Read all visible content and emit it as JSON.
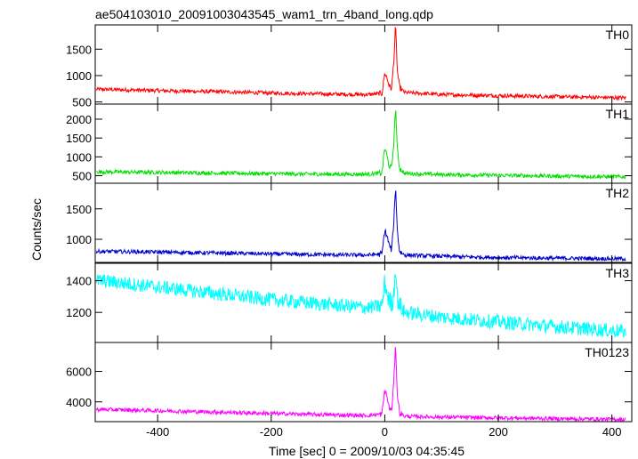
{
  "chart_data": {
    "type": "line",
    "title": "ae504103010_20091003043545_wam1_trn_4band_long.qdp",
    "xlabel": "Time [sec] 0 = 2009/10/03 04:35:45",
    "ylabel": "Counts/sec",
    "xlim": [
      -510,
      435
    ],
    "x_ticks": [
      -400,
      -200,
      0,
      200,
      400
    ],
    "grid": false,
    "panels": [
      {
        "name": "TH0",
        "color": "#ff0000",
        "ylim": [
          460,
          1960
        ],
        "y_ticks": [
          500,
          1000,
          1500
        ],
        "points": [
          [
            -500,
            740
          ],
          [
            -400,
            715
          ],
          [
            -300,
            695
          ],
          [
            -200,
            670
          ],
          [
            -100,
            650
          ],
          [
            -30,
            640
          ],
          [
            -5,
            660
          ],
          [
            0,
            1050
          ],
          [
            4,
            950
          ],
          [
            8,
            800
          ],
          [
            12,
            750
          ],
          [
            16,
            1300
          ],
          [
            19,
            1960
          ],
          [
            22,
            1100
          ],
          [
            26,
            780
          ],
          [
            35,
            680
          ],
          [
            100,
            640
          ],
          [
            200,
            620
          ],
          [
            300,
            600
          ],
          [
            420,
            580
          ]
        ]
      },
      {
        "name": "TH1",
        "color": "#00e000",
        "ylim": [
          300,
          2400
        ],
        "y_ticks": [
          500,
          1000,
          1500,
          2000
        ],
        "points": [
          [
            -500,
            600
          ],
          [
            -400,
            590
          ],
          [
            -300,
            570
          ],
          [
            -200,
            555
          ],
          [
            -100,
            540
          ],
          [
            -30,
            540
          ],
          [
            -5,
            570
          ],
          [
            0,
            1250
          ],
          [
            4,
            1000
          ],
          [
            8,
            750
          ],
          [
            12,
            700
          ],
          [
            16,
            1400
          ],
          [
            19,
            2350
          ],
          [
            22,
            1200
          ],
          [
            26,
            700
          ],
          [
            35,
            560
          ],
          [
            100,
            530
          ],
          [
            200,
            510
          ],
          [
            300,
            490
          ],
          [
            420,
            470
          ]
        ]
      },
      {
        "name": "TH2",
        "color": "#0000cc",
        "ylim": [
          620,
          1920
        ],
        "y_ticks": [
          1000,
          1500
        ],
        "points": [
          [
            -500,
            800
          ],
          [
            -400,
            790
          ],
          [
            -300,
            775
          ],
          [
            -200,
            760
          ],
          [
            -100,
            745
          ],
          [
            -30,
            740
          ],
          [
            -5,
            760
          ],
          [
            0,
            1150
          ],
          [
            4,
            1050
          ],
          [
            8,
            900
          ],
          [
            12,
            820
          ],
          [
            16,
            1300
          ],
          [
            19,
            1880
          ],
          [
            22,
            1150
          ],
          [
            26,
            800
          ],
          [
            35,
            740
          ],
          [
            100,
            720
          ],
          [
            200,
            700
          ],
          [
            300,
            690
          ],
          [
            420,
            680
          ]
        ]
      },
      {
        "name": "TH3",
        "color": "#00ffff",
        "ylim": [
          1010,
          1510
        ],
        "y_ticks": [
          1200,
          1400
        ],
        "points": [
          [
            -500,
            1400
          ],
          [
            -400,
            1360
          ],
          [
            -300,
            1320
          ],
          [
            -200,
            1280
          ],
          [
            -100,
            1250
          ],
          [
            -30,
            1230
          ],
          [
            -5,
            1240
          ],
          [
            0,
            1390
          ],
          [
            4,
            1320
          ],
          [
            8,
            1270
          ],
          [
            12,
            1250
          ],
          [
            16,
            1320
          ],
          [
            19,
            1510
          ],
          [
            22,
            1300
          ],
          [
            26,
            1240
          ],
          [
            35,
            1200
          ],
          [
            100,
            1170
          ],
          [
            200,
            1140
          ],
          [
            300,
            1110
          ],
          [
            420,
            1080
          ]
        ]
      },
      {
        "name": "TH0123",
        "color": "#ff00ff",
        "ylim": [
          2700,
          7900
        ],
        "y_ticks": [
          4000,
          6000
        ],
        "points": [
          [
            -500,
            3500
          ],
          [
            -400,
            3420
          ],
          [
            -300,
            3330
          ],
          [
            -200,
            3240
          ],
          [
            -100,
            3150
          ],
          [
            -30,
            3100
          ],
          [
            -5,
            3200
          ],
          [
            0,
            4800
          ],
          [
            4,
            4300
          ],
          [
            8,
            3600
          ],
          [
            12,
            3400
          ],
          [
            16,
            5400
          ],
          [
            19,
            7800
          ],
          [
            22,
            4500
          ],
          [
            26,
            3300
          ],
          [
            35,
            3050
          ],
          [
            100,
            3000
          ],
          [
            200,
            2950
          ],
          [
            300,
            2900
          ],
          [
            420,
            2850
          ]
        ]
      }
    ]
  }
}
